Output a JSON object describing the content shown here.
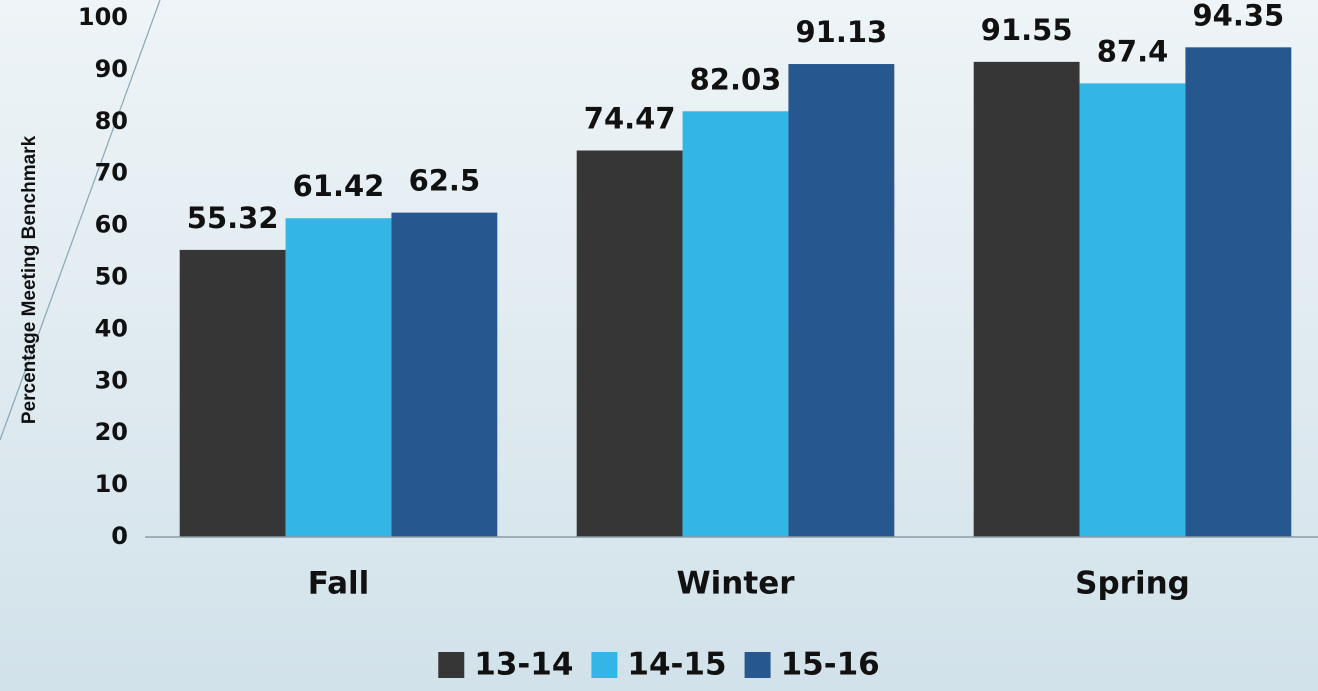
{
  "chart_data": {
    "type": "bar",
    "y_label": "Percentage Meeting Benchmark",
    "categories": [
      "Fall",
      "Winter",
      "Spring"
    ],
    "series": [
      {
        "name": "13-14",
        "color": "#363636",
        "values": [
          55.32,
          74.47,
          91.55
        ]
      },
      {
        "name": "14-15",
        "color": "#33b5e6",
        "values": [
          61.42,
          82.03,
          87.4
        ]
      },
      {
        "name": "15-16",
        "color": "#27578f",
        "values": [
          62.5,
          91.13,
          94.35
        ]
      }
    ],
    "ylim": [
      0,
      100
    ],
    "yticks": [
      0,
      10,
      20,
      30,
      40,
      50,
      60,
      70,
      80,
      90,
      100
    ],
    "legend": "bottom"
  }
}
